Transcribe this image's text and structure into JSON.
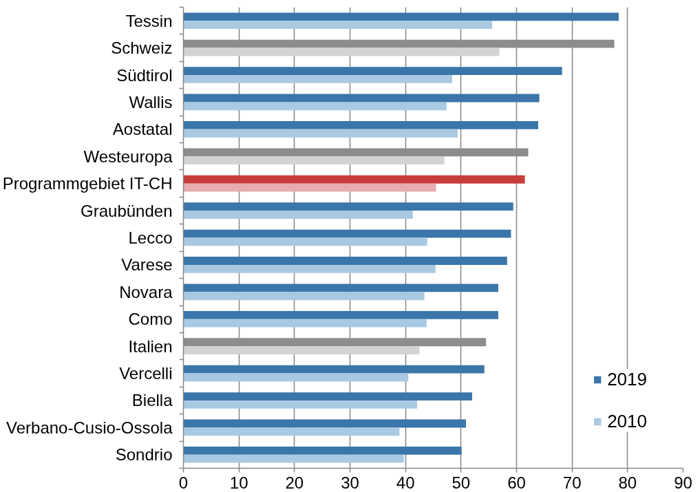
{
  "chart_data": {
    "type": "bar",
    "orientation": "horizontal",
    "categories": [
      "Tessin",
      "Schweiz",
      "Südtirol",
      "Wallis",
      "Aostatal",
      "Westeuropa",
      "Programmgebiet IT-CH",
      "Graubünden",
      "Lecco",
      "Varese",
      "Novara",
      "Como",
      "Italien",
      "Vercelli",
      "Biella",
      "Verbano-Cusio-Ossola",
      "Sondrio"
    ],
    "series": [
      {
        "name": "2019",
        "color": "#3a76a9",
        "colors": [
          "#3a76a9",
          "#8c8c8c",
          "#3a76a9",
          "#3a76a9",
          "#3a76a9",
          "#8c8c8c",
          "#c93c3c",
          "#3a76a9",
          "#3a76a9",
          "#3a76a9",
          "#3a76a9",
          "#3a76a9",
          "#8c8c8c",
          "#3a76a9",
          "#3a76a9",
          "#3a76a9",
          "#3a76a9"
        ],
        "values": [
          78.4,
          77.6,
          68.2,
          64.1,
          63.9,
          62.1,
          61.5,
          59.4,
          59.0,
          58.3,
          56.7,
          56.7,
          54.5,
          54.2,
          52.0,
          50.9,
          50.1
        ]
      },
      {
        "name": "2010",
        "color": "#a9c9e3",
        "colors": [
          "#a9c9e3",
          "#d3d3d3",
          "#a9c9e3",
          "#a9c9e3",
          "#a9c9e3",
          "#d3d3d3",
          "#e8acac",
          "#a9c9e3",
          "#a9c9e3",
          "#a9c9e3",
          "#a9c9e3",
          "#a9c9e3",
          "#d3d3d3",
          "#a9c9e3",
          "#a9c9e3",
          "#a9c9e3",
          "#a9c9e3"
        ],
        "values": [
          55.6,
          56.9,
          48.4,
          47.4,
          49.4,
          47.0,
          45.5,
          41.3,
          43.9,
          45.4,
          43.4,
          43.8,
          42.5,
          40.5,
          42.1,
          38.9,
          39.7
        ]
      }
    ],
    "xlim": [
      0,
      90
    ],
    "xticks": [
      0,
      10,
      20,
      30,
      40,
      50,
      60,
      70,
      80,
      90
    ],
    "grid": "x",
    "legend": "bottom right"
  }
}
